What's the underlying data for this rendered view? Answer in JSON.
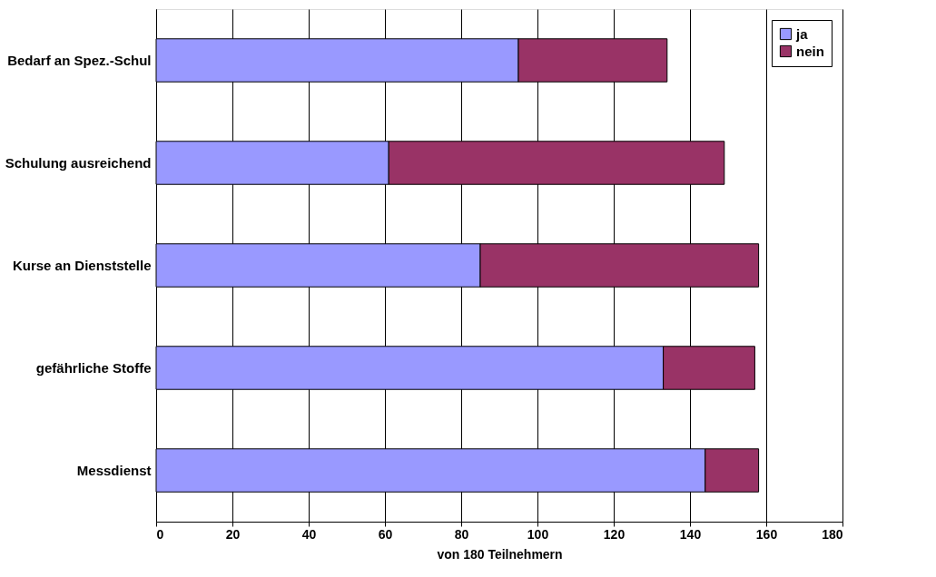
{
  "chart_data": {
    "type": "bar",
    "orientation": "horizontal",
    "stacked": true,
    "xlabel": "von 180 Teilnehmern",
    "categories": [
      "Bedarf an Spez.-Schul",
      "Schulung ausreichend",
      "Kurse an Dienststelle",
      "gefährliche Stoffe",
      "Messdienst"
    ],
    "series": [
      {
        "name": "ja",
        "color": "#9999ff",
        "values": [
          95,
          61,
          85,
          133,
          144
        ]
      },
      {
        "name": "nein",
        "color": "#993366",
        "values": [
          39,
          88,
          73,
          24,
          14
        ]
      }
    ],
    "xlim": [
      0,
      180
    ],
    "xticks": [
      0,
      20,
      40,
      60,
      80,
      100,
      120,
      140,
      160,
      180
    ],
    "grid": "x",
    "legend": "top right"
  }
}
